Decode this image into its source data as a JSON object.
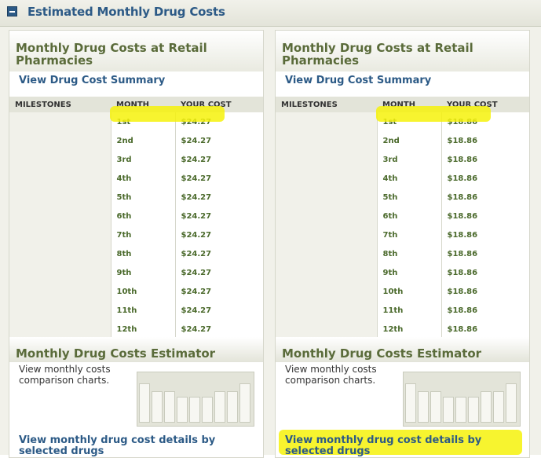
{
  "header": {
    "title": "Estimated Monthly Drug Costs",
    "toggle_icon": "collapse-minus-icon"
  },
  "columns": [
    {
      "panel_title": "Monthly Drug Costs at Retail Pharmacies",
      "summary_link": "View Drug Cost Summary",
      "table": {
        "headers": [
          "MILESTONES",
          "MONTH",
          "YOUR COST"
        ],
        "rows": [
          {
            "month": "1st",
            "cost": "$24.27"
          },
          {
            "month": "2nd",
            "cost": "$24.27"
          },
          {
            "month": "3rd",
            "cost": "$24.27"
          },
          {
            "month": "4th",
            "cost": "$24.27"
          },
          {
            "month": "5th",
            "cost": "$24.27"
          },
          {
            "month": "6th",
            "cost": "$24.27"
          },
          {
            "month": "7th",
            "cost": "$24.27"
          },
          {
            "month": "8th",
            "cost": "$24.27"
          },
          {
            "month": "9th",
            "cost": "$24.27"
          },
          {
            "month": "10th",
            "cost": "$24.27"
          },
          {
            "month": "11th",
            "cost": "$24.27"
          },
          {
            "month": "12th",
            "cost": "$24.27"
          }
        ]
      },
      "estimator": {
        "title": "Monthly Drug Costs Estimator",
        "text": "View monthly costs comparison charts.",
        "details_link": "View monthly drug cost details by selected drugs"
      }
    },
    {
      "panel_title": "Monthly Drug Costs at Retail Pharmacies",
      "summary_link": "View Drug Cost Summary",
      "table": {
        "headers": [
          "MILESTONES",
          "MONTH",
          "YOUR COST"
        ],
        "rows": [
          {
            "month": "1st",
            "cost": "$18.86"
          },
          {
            "month": "2nd",
            "cost": "$18.86"
          },
          {
            "month": "3rd",
            "cost": "$18.86"
          },
          {
            "month": "4th",
            "cost": "$18.86"
          },
          {
            "month": "5th",
            "cost": "$18.86"
          },
          {
            "month": "6th",
            "cost": "$18.86"
          },
          {
            "month": "7th",
            "cost": "$18.86"
          },
          {
            "month": "8th",
            "cost": "$18.86"
          },
          {
            "month": "9th",
            "cost": "$18.86"
          },
          {
            "month": "10th",
            "cost": "$18.86"
          },
          {
            "month": "11th",
            "cost": "$18.86"
          },
          {
            "month": "12th",
            "cost": "$18.86"
          }
        ]
      },
      "estimator": {
        "title": "Monthly Drug Costs Estimator",
        "text": "View monthly costs comparison charts.",
        "details_link": "View monthly drug cost details by selected drugs"
      }
    }
  ],
  "highlight_color": "#f6f20a"
}
